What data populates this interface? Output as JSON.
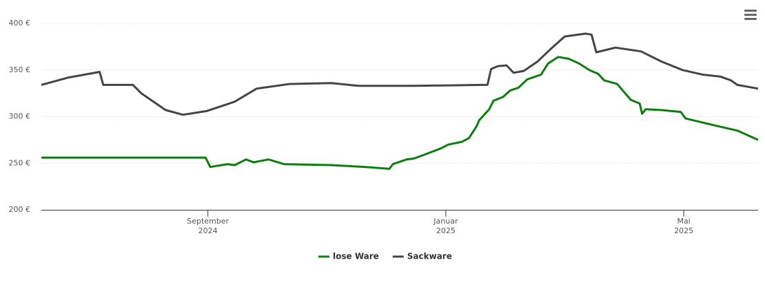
{
  "chart_data": {
    "type": "line",
    "xlim": [
      6.2,
      18.25
    ],
    "xticks": [
      {
        "value": 9,
        "label": "September 2024"
      },
      {
        "value": 13,
        "label": "Januar 2025"
      },
      {
        "value": 17,
        "label": "Mai 2025"
      }
    ],
    "ylim": [
      200,
      400
    ],
    "yticks": [
      {
        "value": 200,
        "label": "200 €"
      },
      {
        "value": 250,
        "label": "250 €"
      },
      {
        "value": 300,
        "label": "300 €"
      },
      {
        "value": 350,
        "label": "350 €"
      },
      {
        "value": 400,
        "label": "400 €"
      }
    ],
    "grid": true,
    "legend": "bottom",
    "series": [
      {
        "name": "lose Ware",
        "color": "#0b7d0b",
        "x": [
          6.2,
          8.96,
          9.04,
          9.33,
          9.45,
          9.64,
          9.77,
          10.02,
          10.28,
          11.07,
          11.65,
          12.05,
          12.11,
          12.34,
          12.46,
          12.63,
          12.92,
          13.04,
          13.27,
          13.39,
          13.52,
          13.56,
          13.73,
          13.8,
          13.96,
          14.08,
          14.22,
          14.37,
          14.6,
          14.72,
          14.89,
          15.07,
          15.24,
          15.41,
          15.56,
          15.66,
          15.88,
          16.11,
          16.26,
          16.3,
          16.36,
          16.63,
          16.95,
          17.03,
          17.56,
          17.9,
          18.25
        ],
        "values": [
          256,
          256,
          246,
          249,
          248,
          254,
          251,
          254,
          249,
          248,
          246,
          244,
          249,
          254,
          255,
          259,
          266,
          270,
          273,
          277,
          290,
          296,
          308,
          317,
          321,
          328,
          331,
          340,
          345,
          357,
          364,
          362,
          357,
          350,
          346,
          339,
          335,
          318,
          314,
          303,
          308,
          307,
          305,
          298,
          290,
          285,
          275
        ]
      },
      {
        "name": "Sackware",
        "color": "#434348",
        "x": [
          6.2,
          6.66,
          7.18,
          7.24,
          7.74,
          7.88,
          8.29,
          8.58,
          8.98,
          9.45,
          9.82,
          10.37,
          11.07,
          11.53,
          12.46,
          13.62,
          13.7,
          13.76,
          13.87,
          14.02,
          14.14,
          14.31,
          14.54,
          14.77,
          15.0,
          15.35,
          15.45,
          15.53,
          15.85,
          16.28,
          16.63,
          16.98,
          17.32,
          17.61,
          17.79,
          17.9,
          18.25
        ],
        "values": [
          334,
          342,
          348,
          334,
          334,
          325,
          307,
          302,
          306,
          316,
          330,
          335,
          336,
          333,
          333,
          334,
          334,
          351,
          354,
          355,
          347,
          349,
          359,
          373,
          386,
          389,
          388,
          369,
          374,
          370,
          359,
          350,
          345,
          343,
          339,
          334,
          330
        ]
      }
    ]
  }
}
